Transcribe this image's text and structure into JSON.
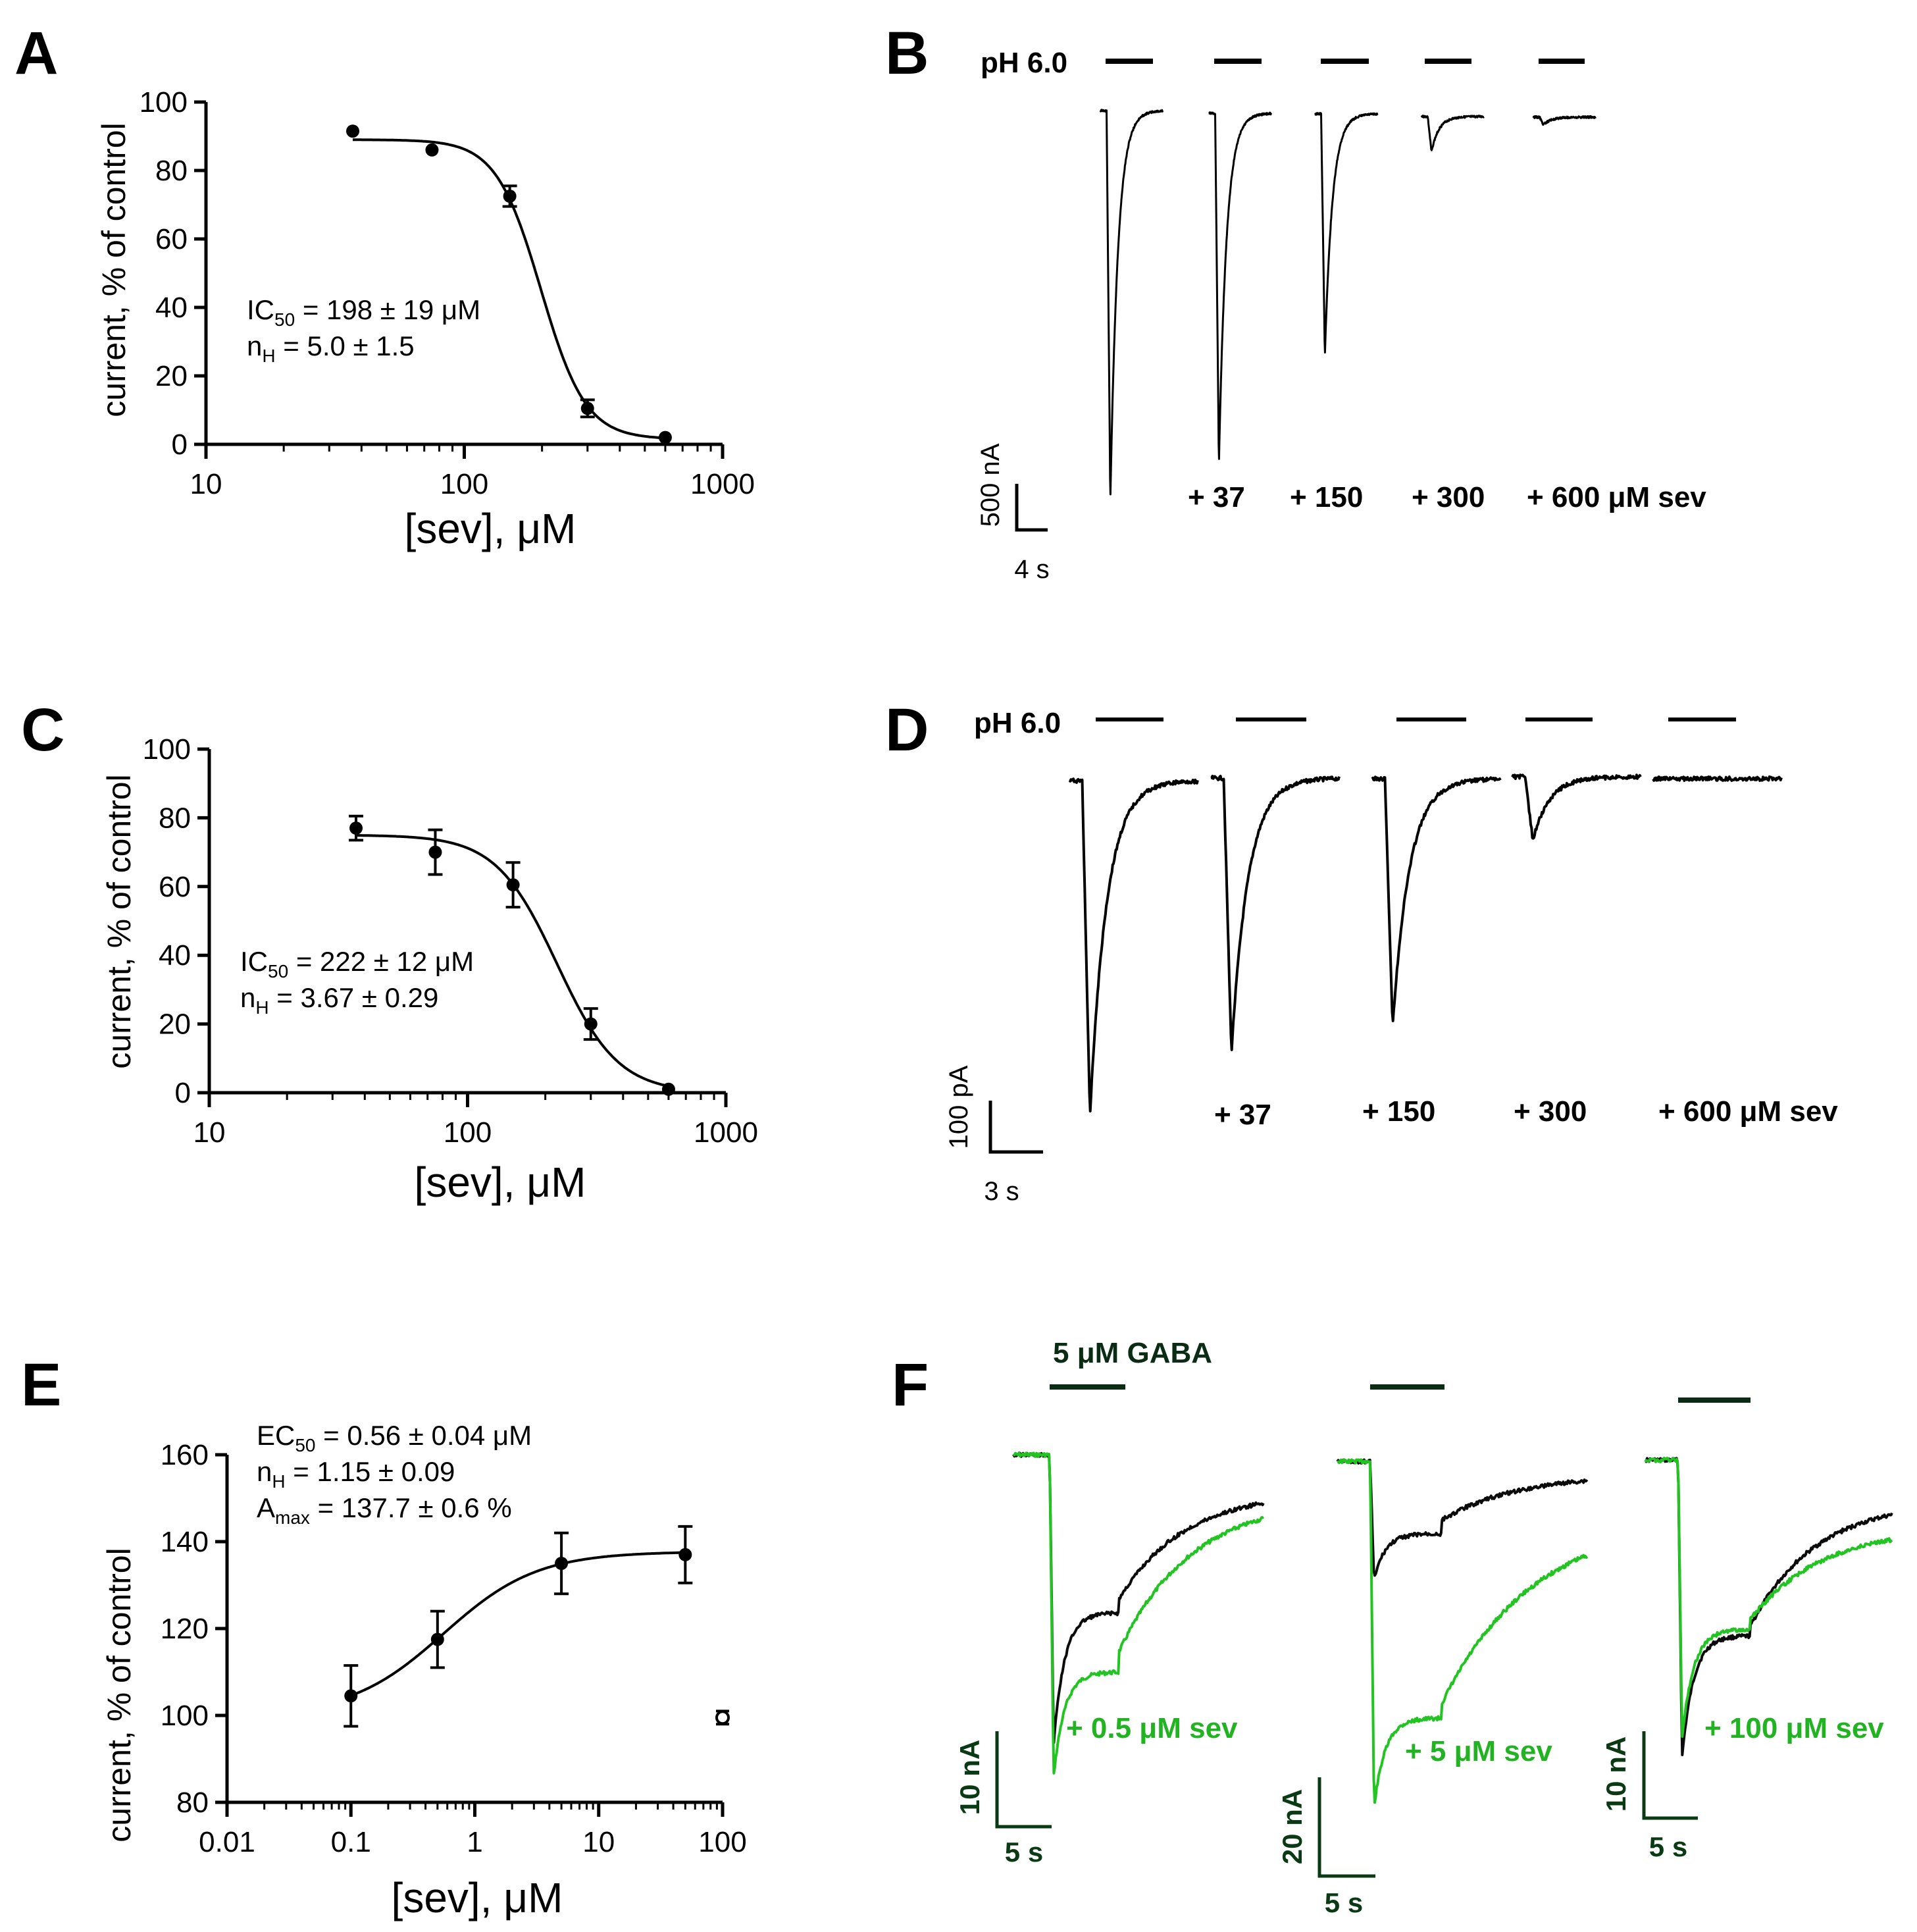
{
  "panels": {
    "A": "A",
    "B": "B",
    "C": "C",
    "D": "D",
    "E": "E",
    "F": "F"
  },
  "chart_data": [
    {
      "id": "A",
      "type": "scatter",
      "xscale": "log",
      "xlim": [
        10,
        1000
      ],
      "ylim": [
        0,
        100
      ],
      "xticks": [
        10,
        100,
        1000
      ],
      "xtick_labels": [
        "10",
        "100",
        "1000"
      ],
      "yticks": [
        0,
        20,
        40,
        60,
        80,
        100
      ],
      "ytick_labels": [
        "0",
        "20",
        "40",
        "60",
        "80",
        "100"
      ],
      "xlabel": "[sev],  μM",
      "ylabel": "current,  % of control",
      "x": [
        37,
        75,
        150,
        300,
        600
      ],
      "y": [
        91.5,
        86,
        72.5,
        10.5,
        2
      ],
      "err": [
        0,
        0,
        3,
        2.5,
        0
      ],
      "fit": {
        "model": "hill",
        "top": 89,
        "bottom": 1.5,
        "ic50": 198,
        "n": 5.0
      },
      "annotation": {
        "line1_main": "IC",
        "line1_sub": "50",
        "line1_rest": " = 198 ± 19 μM",
        "line2_main": "n",
        "line2_sub": "H",
        "line2_rest": " = 5.0 ± 1.5"
      }
    },
    {
      "id": "C",
      "type": "scatter",
      "xscale": "log",
      "xlim": [
        10,
        1000
      ],
      "ylim": [
        0,
        100
      ],
      "xticks": [
        10,
        100,
        1000
      ],
      "xtick_labels": [
        "10",
        "100",
        "1000"
      ],
      "yticks": [
        0,
        20,
        40,
        60,
        80,
        100
      ],
      "ytick_labels": [
        "0",
        "20",
        "40",
        "60",
        "80",
        "100"
      ],
      "xlabel": "[sev],  μM",
      "ylabel": "current,  % of control",
      "x": [
        37,
        75,
        150,
        300,
        600
      ],
      "y": [
        77,
        70,
        60.5,
        20,
        1
      ],
      "err": [
        3.5,
        6.5,
        6.5,
        4.5,
        0
      ],
      "fit": {
        "model": "hill",
        "top": 75,
        "bottom": 0,
        "ic50": 222,
        "n": 3.67
      },
      "annotation": {
        "line1_main": "IC",
        "line1_sub": "50",
        "line1_rest": " = 222 ± 12 μM",
        "line2_main": "n",
        "line2_sub": "H",
        "line2_rest": " = 3.67 ± 0.29"
      }
    },
    {
      "id": "E",
      "type": "scatter",
      "xscale": "log",
      "xlim": [
        0.01,
        100
      ],
      "ylim": [
        80,
        160
      ],
      "xticks": [
        0.01,
        0.1,
        1,
        10,
        100
      ],
      "xtick_labels": [
        "0.01",
        "0.1",
        "1",
        "10",
        "100"
      ],
      "yticks": [
        80,
        100,
        120,
        140,
        160
      ],
      "ytick_labels": [
        "80",
        "100",
        "120",
        "140",
        "160"
      ],
      "xlabel": "[sev],  μM",
      "ylabel": "current,  % of control",
      "x": [
        0.1,
        0.5,
        5,
        50
      ],
      "y": [
        104.5,
        117.5,
        135,
        137
      ],
      "err": [
        7,
        6.5,
        7,
        6.5
      ],
      "open_point": {
        "x": 100,
        "y": 99.5,
        "err": 1.5
      },
      "fit": {
        "model": "stim",
        "base": 100,
        "amax": 37.7,
        "ec50": 0.56,
        "n": 1.15,
        "xfrom": 0.1,
        "xto": 50
      },
      "annotation": {
        "line1_main": "EC",
        "line1_sub": "50",
        "line1_rest": " = 0.56 ± 0.04 μM",
        "line2_main": "n",
        "line2_sub": "H",
        "line2_rest": " = 1.15 ± 0.09",
        "line3_main": "A",
        "line3_sub": "max",
        "line3_rest": " = 137.7 ± 0.6 %"
      }
    }
  ],
  "traces": {
    "B": {
      "ph_label": "pH 6.0",
      "concentration_labels": [
        "+ 37",
        "+ 150",
        "+ 300",
        "+ 600 μM sev"
      ],
      "relative_peaks": [
        1.0,
        0.9,
        0.62,
        0.09,
        0.02
      ],
      "scale_current": "500 nA",
      "scale_time": "4 s"
    },
    "D": {
      "ph_label": "pH 6.0",
      "concentration_labels": [
        "+ 37",
        "+ 150",
        "+ 300",
        "+ 600 μM sev"
      ],
      "relative_peaks": [
        1.0,
        0.82,
        0.74,
        0.19,
        0.0
      ],
      "scale_current": "100 pA",
      "scale_time": "3 s"
    },
    "F": {
      "gaba_label": "5 μM GABA",
      "sev_labels": [
        "+ 0.5 μM sev",
        "+ 5 μM sev",
        "+ 100 μM sev"
      ],
      "scale_current": [
        "10 nA",
        "20 nA",
        "10 nA"
      ],
      "scale_time": [
        "5 s",
        "5 s",
        "5 s"
      ],
      "colors": {
        "control": "#0b0b0b",
        "sev": "#22c422",
        "scale": "#0a3a14"
      }
    }
  }
}
